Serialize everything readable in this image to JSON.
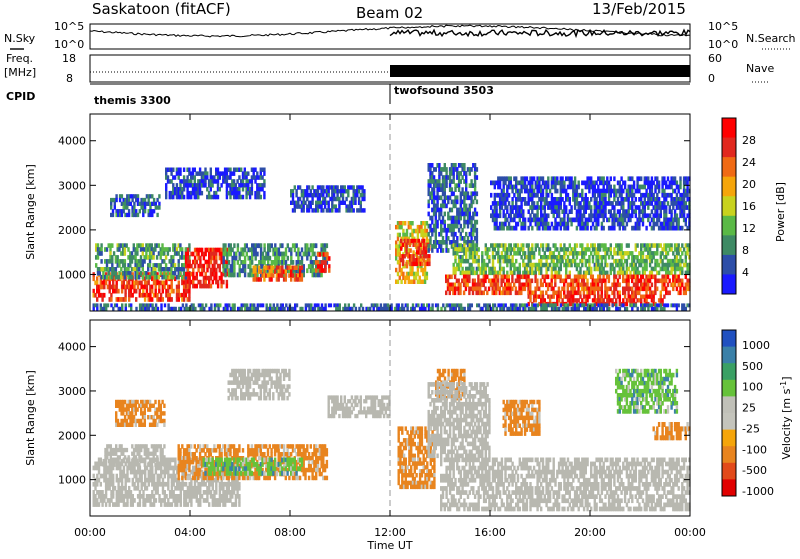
{
  "header": {
    "station": "Saskatoon (fitACF)",
    "beam": "Beam 02",
    "date": "13/Feb/2015"
  },
  "top_panels": {
    "nsky_label": "N.Sky",
    "nsky_ticks_left": [
      "10^5",
      "10^0"
    ],
    "nsearch_label": "N.Search",
    "nsearch_ticks_right": [
      "10^5",
      "10^0"
    ],
    "freq_label": "Freq.",
    "freq_unit": "[MHz]",
    "freq_ticks": [
      "18",
      "8"
    ],
    "nave_label": "Nave",
    "nave_ticks": [
      "60",
      "0"
    ],
    "cpid_label": "CPID",
    "cpid_segments": [
      {
        "name": "themis 3300",
        "start_hour": 0
      },
      {
        "name": "twofsound 3503",
        "start_hour": 12
      }
    ]
  },
  "colors": {
    "power": [
      "#1a1aff",
      "#2d4ea8",
      "#3e8a64",
      "#5ab946",
      "#c8d21e",
      "#f5a50a",
      "#f06a14",
      "#e1281e",
      "#ff0000"
    ],
    "velocity": [
      "#2050c0",
      "#3a80a8",
      "#3aa064",
      "#66c23a",
      "#c0c0b8",
      "#c4c4bc",
      "#f5a50a",
      "#e8841e",
      "#e24a1a",
      "#e10000"
    ],
    "ground_scatter": "#b8b8b0"
  },
  "chart_data": [
    {
      "type": "heatmap",
      "quantity": "Power",
      "ylabel": "Slant Range [km]",
      "xlabel": "Time UT",
      "x_ticks": [
        "00:00",
        "04:00",
        "08:00",
        "12:00",
        "16:00",
        "20:00",
        "00:00"
      ],
      "y_ticks": [
        1000,
        2000,
        3000,
        4000
      ],
      "xlim_hours": [
        0,
        24
      ],
      "ylim_km": [
        180,
        4600
      ],
      "colorbar_label": "Power [dB]",
      "colorbar_ticks": [
        4,
        8,
        12,
        16,
        20,
        24,
        28
      ],
      "colorbar_range": [
        0,
        32
      ],
      "regions": [
        {
          "t0": 0.1,
          "t1": 4.0,
          "r0": 400,
          "r1": 1050,
          "v": 26
        },
        {
          "t0": 0.2,
          "t1": 4.0,
          "r0": 900,
          "r1": 1700,
          "v": 10
        },
        {
          "t0": 3.8,
          "t1": 5.5,
          "r0": 700,
          "r1": 1600,
          "v": 28
        },
        {
          "t0": 5.3,
          "t1": 9.5,
          "r0": 950,
          "r1": 1700,
          "v": 9
        },
        {
          "t0": 6.5,
          "t1": 8.5,
          "r0": 850,
          "r1": 1200,
          "v": 24
        },
        {
          "t0": 9.0,
          "t1": 9.6,
          "r0": 1050,
          "r1": 1500,
          "v": 26
        },
        {
          "t0": 3.0,
          "t1": 7.0,
          "r0": 2700,
          "r1": 3400,
          "v": 4
        },
        {
          "t0": 8.0,
          "t1": 11.0,
          "r0": 2400,
          "r1": 3000,
          "v": 5
        },
        {
          "t0": 0.8,
          "t1": 2.8,
          "r0": 2300,
          "r1": 2800,
          "v": 6
        },
        {
          "t0": 12.2,
          "t1": 13.5,
          "r0": 800,
          "r1": 2200,
          "v": 18
        },
        {
          "t0": 12.4,
          "t1": 13.6,
          "r0": 1200,
          "r1": 1800,
          "v": 26
        },
        {
          "t0": 13.5,
          "t1": 15.5,
          "r0": 1500,
          "r1": 3500,
          "v": 6
        },
        {
          "t0": 14.5,
          "t1": 24.0,
          "r0": 1000,
          "r1": 1700,
          "v": 12
        },
        {
          "t0": 14.2,
          "t1": 24.0,
          "r0": 550,
          "r1": 1000,
          "v": 26
        },
        {
          "t0": 17.5,
          "t1": 23.0,
          "r0": 300,
          "r1": 550,
          "v": 28
        },
        {
          "t0": 16.0,
          "t1": 24.0,
          "r0": 2000,
          "r1": 3200,
          "v": 4
        },
        {
          "t0": 0.1,
          "t1": 24.0,
          "r0": 200,
          "r1": 350,
          "v": 6
        }
      ]
    },
    {
      "type": "heatmap",
      "quantity": "Velocity",
      "ylabel": "Slant Range [km]",
      "xlabel": "Time UT",
      "x_ticks": [
        "00:00",
        "04:00",
        "08:00",
        "12:00",
        "16:00",
        "20:00",
        "00:00"
      ],
      "y_ticks": [
        1000,
        2000,
        3000,
        4000
      ],
      "xlim_hours": [
        0,
        24
      ],
      "ylim_km": [
        180,
        4600
      ],
      "colorbar_label": "Velocity [m s^-1]",
      "colorbar_ticks": [
        "1000",
        "500",
        "100",
        "25",
        "-25",
        "-100",
        "-500",
        "-1000"
      ],
      "regions": [
        {
          "t0": 0.1,
          "t1": 6.0,
          "r0": 400,
          "r1": 1500,
          "v": "gs"
        },
        {
          "t0": 0.5,
          "t1": 3.0,
          "r0": 1300,
          "r1": 1800,
          "v": "gs"
        },
        {
          "t0": 3.5,
          "t1": 9.5,
          "r0": 1000,
          "r1": 1800,
          "v": -100
        },
        {
          "t0": 4.5,
          "t1": 8.5,
          "r0": 1100,
          "r1": 1500,
          "v": 100
        },
        {
          "t0": 5.5,
          "t1": 8.0,
          "r0": 2800,
          "r1": 3500,
          "v": "gs"
        },
        {
          "t0": 9.5,
          "t1": 12.0,
          "r0": 2400,
          "r1": 2900,
          "v": "gs"
        },
        {
          "t0": 1.0,
          "t1": 3.0,
          "r0": 2200,
          "r1": 2800,
          "v": -100
        },
        {
          "t0": 12.3,
          "t1": 13.8,
          "r0": 800,
          "r1": 2200,
          "v": -100
        },
        {
          "t0": 13.8,
          "t1": 15.0,
          "r0": 2800,
          "r1": 3500,
          "v": -100
        },
        {
          "t0": 14.0,
          "t1": 24.0,
          "r0": 300,
          "r1": 1500,
          "v": "gs"
        },
        {
          "t0": 13.5,
          "t1": 16.0,
          "r0": 1500,
          "r1": 3200,
          "v": "gs"
        },
        {
          "t0": 16.5,
          "t1": 18.0,
          "r0": 2000,
          "r1": 2800,
          "v": -100
        },
        {
          "t0": 21.0,
          "t1": 23.5,
          "r0": 2500,
          "r1": 3500,
          "v": 100
        },
        {
          "t0": 22.5,
          "t1": 24.0,
          "r0": 1900,
          "r1": 2300,
          "v": -100
        }
      ]
    }
  ]
}
